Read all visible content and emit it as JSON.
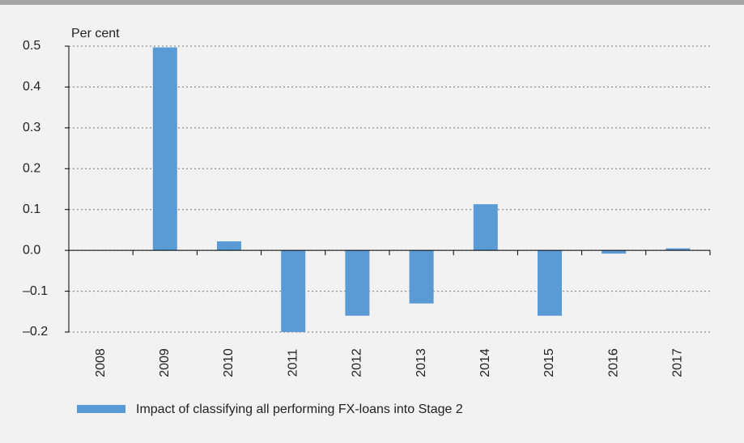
{
  "chart_data": {
    "type": "bar",
    "y_axis_label": "Per cent",
    "categories": [
      "2008",
      "2009",
      "2010",
      "2011",
      "2012",
      "2013",
      "2014",
      "2015",
      "2016",
      "2017"
    ],
    "series": [
      {
        "name": "Impact of classifying all performing FX-loans into Stage 2",
        "color": "#5b9bd5",
        "values": [
          0,
          0.497,
          0.022,
          -0.2,
          -0.16,
          -0.13,
          0.113,
          -0.16,
          -0.008,
          0.005
        ]
      }
    ],
    "ylim": [
      -0.2,
      0.5
    ],
    "yticks": [
      {
        "value": -0.2,
        "label": "–0.2"
      },
      {
        "value": -0.1,
        "label": "–0.1"
      },
      {
        "value": 0,
        "label": "0.0"
      },
      0.1,
      0.2,
      0.3,
      0.4,
      0.5
    ],
    "grid": true,
    "legend": "bottom-left"
  }
}
